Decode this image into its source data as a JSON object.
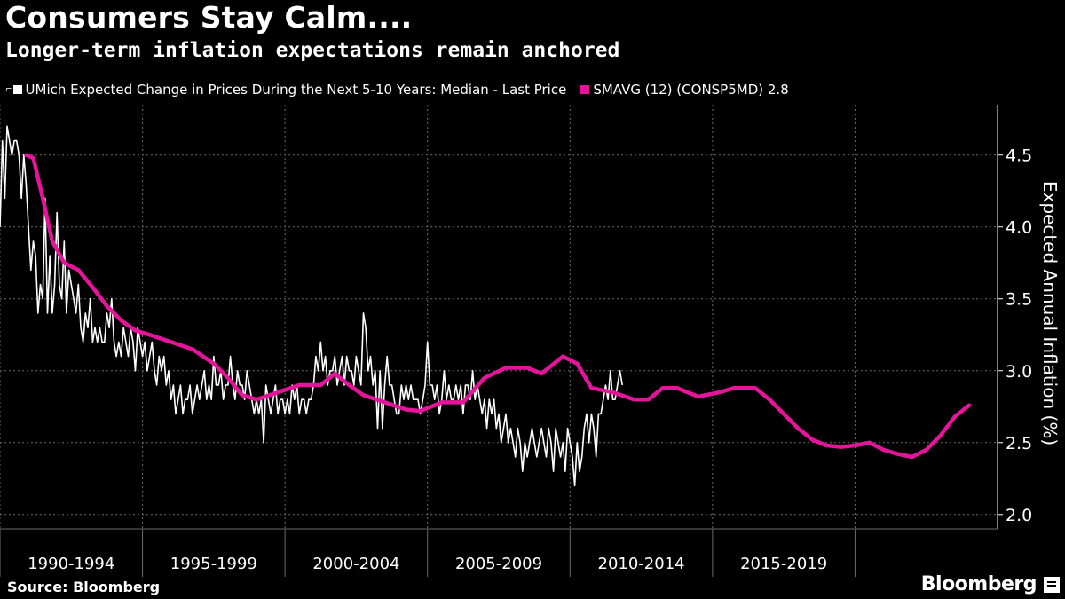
{
  "title": "Consumers Stay Calm....",
  "subtitle": "Longer-term inflation expectations remain anchored",
  "legend": {
    "marker_glyph": "⌐",
    "series1_label": "UMich Expected Change in Prices During the Next 5-10 Years: Median - Last Price",
    "series2_label": "SMAVG (12) (CONSP5MD) 2.8"
  },
  "source": "Source: Bloomberg",
  "brand": "Bloomberg",
  "colors": {
    "background": "#000000",
    "series1": "#ffffff",
    "series2": "#e6149a",
    "grid": "#6a6a6a"
  },
  "chart_data": {
    "type": "line",
    "ylabel": "Expected Annual Inflation (%)",
    "ylim": [
      1.9,
      4.85
    ],
    "yticks": [
      2.0,
      2.5,
      3.0,
      3.5,
      4.0,
      4.5
    ],
    "grid": true,
    "legend_position": "top-left",
    "x_range": [
      "1990-01",
      "2021-12"
    ],
    "x_categories": [
      "1990-1994",
      "1995-1999",
      "2000-2004",
      "2005-2009",
      "2010-2014",
      "2015-2019"
    ],
    "series": [
      {
        "name": "UMich Expected Change in Prices During the Next 5-10 Years: Median - Last Price",
        "start": "1990-01",
        "frequency": "monthly",
        "values": [
          4.0,
          4.6,
          4.2,
          4.7,
          4.6,
          4.5,
          4.6,
          4.6,
          4.5,
          4.2,
          4.5,
          4.3,
          4.0,
          3.7,
          3.9,
          3.8,
          3.4,
          3.6,
          3.5,
          4.2,
          3.4,
          3.8,
          3.4,
          3.6,
          4.1,
          3.6,
          3.5,
          3.9,
          3.4,
          3.7,
          3.6,
          3.5,
          3.4,
          3.6,
          3.3,
          3.2,
          3.4,
          3.3,
          3.5,
          3.2,
          3.3,
          3.2,
          3.3,
          3.2,
          3.2,
          3.4,
          3.3,
          3.5,
          3.2,
          3.1,
          3.2,
          3.1,
          3.3,
          3.2,
          3.1,
          3.3,
          3.2,
          3.0,
          3.3,
          3.2,
          3.1,
          3.2,
          3.0,
          3.1,
          3.2,
          3.0,
          2.9,
          3.1,
          3.0,
          3.1,
          2.9,
          3.0,
          2.8,
          2.9,
          2.7,
          2.8,
          2.9,
          2.7,
          2.8,
          2.8,
          2.9,
          2.7,
          2.8,
          2.9,
          2.8,
          2.9,
          3.0,
          2.8,
          2.9,
          2.8,
          3.1,
          2.9,
          2.9,
          3.0,
          2.8,
          2.9,
          2.9,
          3.1,
          2.9,
          2.8,
          3.0,
          2.9,
          2.9,
          2.8,
          3.0,
          2.9,
          2.8,
          2.7,
          2.8,
          2.7,
          2.8,
          2.5,
          2.9,
          2.8,
          2.7,
          2.8,
          2.9,
          2.7,
          2.8,
          2.8,
          2.7,
          2.8,
          2.7,
          2.9,
          2.8,
          2.9,
          2.7,
          2.8,
          2.8,
          2.7,
          2.8,
          2.8,
          2.9,
          3.1,
          3.0,
          3.2,
          3.0,
          3.1,
          2.9,
          3.0,
          3.0,
          3.1,
          2.9,
          3.0,
          3.1,
          2.9,
          3.1,
          3.0,
          3.0,
          2.9,
          3.1,
          3.0,
          2.9,
          3.4,
          3.3,
          3.0,
          3.1,
          2.9,
          3.0,
          2.6,
          3.0,
          2.6,
          2.9,
          3.1,
          2.9,
          2.9,
          2.8,
          2.7,
          2.7,
          2.9,
          2.8,
          2.9,
          2.8,
          2.9,
          2.8,
          2.8,
          2.8,
          2.7,
          2.8,
          2.9,
          3.2,
          2.9,
          2.9,
          2.8,
          2.9,
          2.7,
          2.8,
          3.0,
          2.8,
          2.9,
          2.8,
          2.8,
          2.9,
          2.8,
          2.9,
          2.7,
          2.9,
          2.9,
          2.8,
          3.0,
          2.8,
          2.9,
          2.8,
          2.7,
          2.8,
          2.6,
          2.8,
          2.7,
          2.8,
          2.6,
          2.7,
          2.5,
          2.6,
          2.7,
          2.5,
          2.6,
          2.5,
          2.4,
          2.6,
          2.5,
          2.3,
          2.5,
          2.4,
          2.5,
          2.6,
          2.5,
          2.4,
          2.5,
          2.6,
          2.5,
          2.4,
          2.6,
          2.5,
          2.3,
          2.6,
          2.5,
          2.4,
          2.5,
          2.3,
          2.6,
          2.5,
          2.4,
          2.2,
          2.5,
          2.3,
          2.4,
          2.6,
          2.7,
          2.5,
          2.7,
          2.6,
          2.4,
          2.7,
          2.7,
          2.8,
          2.9,
          2.8,
          3.0,
          2.8,
          2.8,
          2.9,
          3.0,
          2.9
        ]
      },
      {
        "name": "SMAVG (12) (CONSP5MD) 2.8",
        "start": "1990-12",
        "frequency": "monthly",
        "anchors": [
          {
            "x": 1990.917,
            "y": 4.5
          },
          {
            "x": 1991.167,
            "y": 4.48
          },
          {
            "x": 1991.5,
            "y": 4.2
          },
          {
            "x": 1991.833,
            "y": 3.9
          },
          {
            "x": 1992.25,
            "y": 3.75
          },
          {
            "x": 1992.75,
            "y": 3.7
          },
          {
            "x": 1993.25,
            "y": 3.58
          },
          {
            "x": 1993.75,
            "y": 3.45
          },
          {
            "x": 1994.25,
            "y": 3.35
          },
          {
            "x": 1994.75,
            "y": 3.28
          },
          {
            "x": 1995.25,
            "y": 3.25
          },
          {
            "x": 1996.0,
            "y": 3.2
          },
          {
            "x": 1996.75,
            "y": 3.15
          },
          {
            "x": 1997.5,
            "y": 3.05
          },
          {
            "x": 1998.0,
            "y": 2.95
          },
          {
            "x": 1998.5,
            "y": 2.83
          },
          {
            "x": 1999.0,
            "y": 2.8
          },
          {
            "x": 1999.75,
            "y": 2.85
          },
          {
            "x": 2000.5,
            "y": 2.9
          },
          {
            "x": 2001.25,
            "y": 2.9
          },
          {
            "x": 2001.75,
            "y": 2.98
          },
          {
            "x": 2002.25,
            "y": 2.9
          },
          {
            "x": 2002.75,
            "y": 2.83
          },
          {
            "x": 2003.5,
            "y": 2.78
          },
          {
            "x": 2004.25,
            "y": 2.73
          },
          {
            "x": 2004.75,
            "y": 2.72
          },
          {
            "x": 2005.5,
            "y": 2.78
          },
          {
            "x": 2006.25,
            "y": 2.78
          },
          {
            "x": 2007.0,
            "y": 2.95
          },
          {
            "x": 2007.75,
            "y": 3.02
          },
          {
            "x": 2008.5,
            "y": 3.02
          },
          {
            "x": 2009.0,
            "y": 2.98
          },
          {
            "x": 2009.75,
            "y": 3.1
          },
          {
            "x": 2010.25,
            "y": 3.05
          },
          {
            "x": 2010.75,
            "y": 2.88
          },
          {
            "x": 2011.5,
            "y": 2.85
          },
          {
            "x": 2012.25,
            "y": 2.8
          },
          {
            "x": 2012.75,
            "y": 2.8
          },
          {
            "x": 2013.25,
            "y": 2.88
          },
          {
            "x": 2013.75,
            "y": 2.88
          },
          {
            "x": 2014.5,
            "y": 2.82
          },
          {
            "x": 2015.25,
            "y": 2.85
          },
          {
            "x": 2015.75,
            "y": 2.88
          },
          {
            "x": 2016.5,
            "y": 2.88
          },
          {
            "x": 2017.0,
            "y": 2.8
          },
          {
            "x": 2017.5,
            "y": 2.7
          },
          {
            "x": 2018.0,
            "y": 2.6
          },
          {
            "x": 2018.5,
            "y": 2.52
          },
          {
            "x": 2019.0,
            "y": 2.48
          },
          {
            "x": 2019.5,
            "y": 2.47
          },
          {
            "x": 2020.0,
            "y": 2.48
          },
          {
            "x": 2020.5,
            "y": 2.5
          },
          {
            "x": 2021.0,
            "y": 2.45
          },
          {
            "x": 2021.5,
            "y": 2.42
          },
          {
            "x": 2022.0,
            "y": 2.4
          },
          {
            "x": 2022.5,
            "y": 2.45
          },
          {
            "x": 2023.0,
            "y": 2.55
          },
          {
            "x": 2023.5,
            "y": 2.68
          },
          {
            "x": 2024.0,
            "y": 2.76
          }
        ]
      }
    ]
  }
}
